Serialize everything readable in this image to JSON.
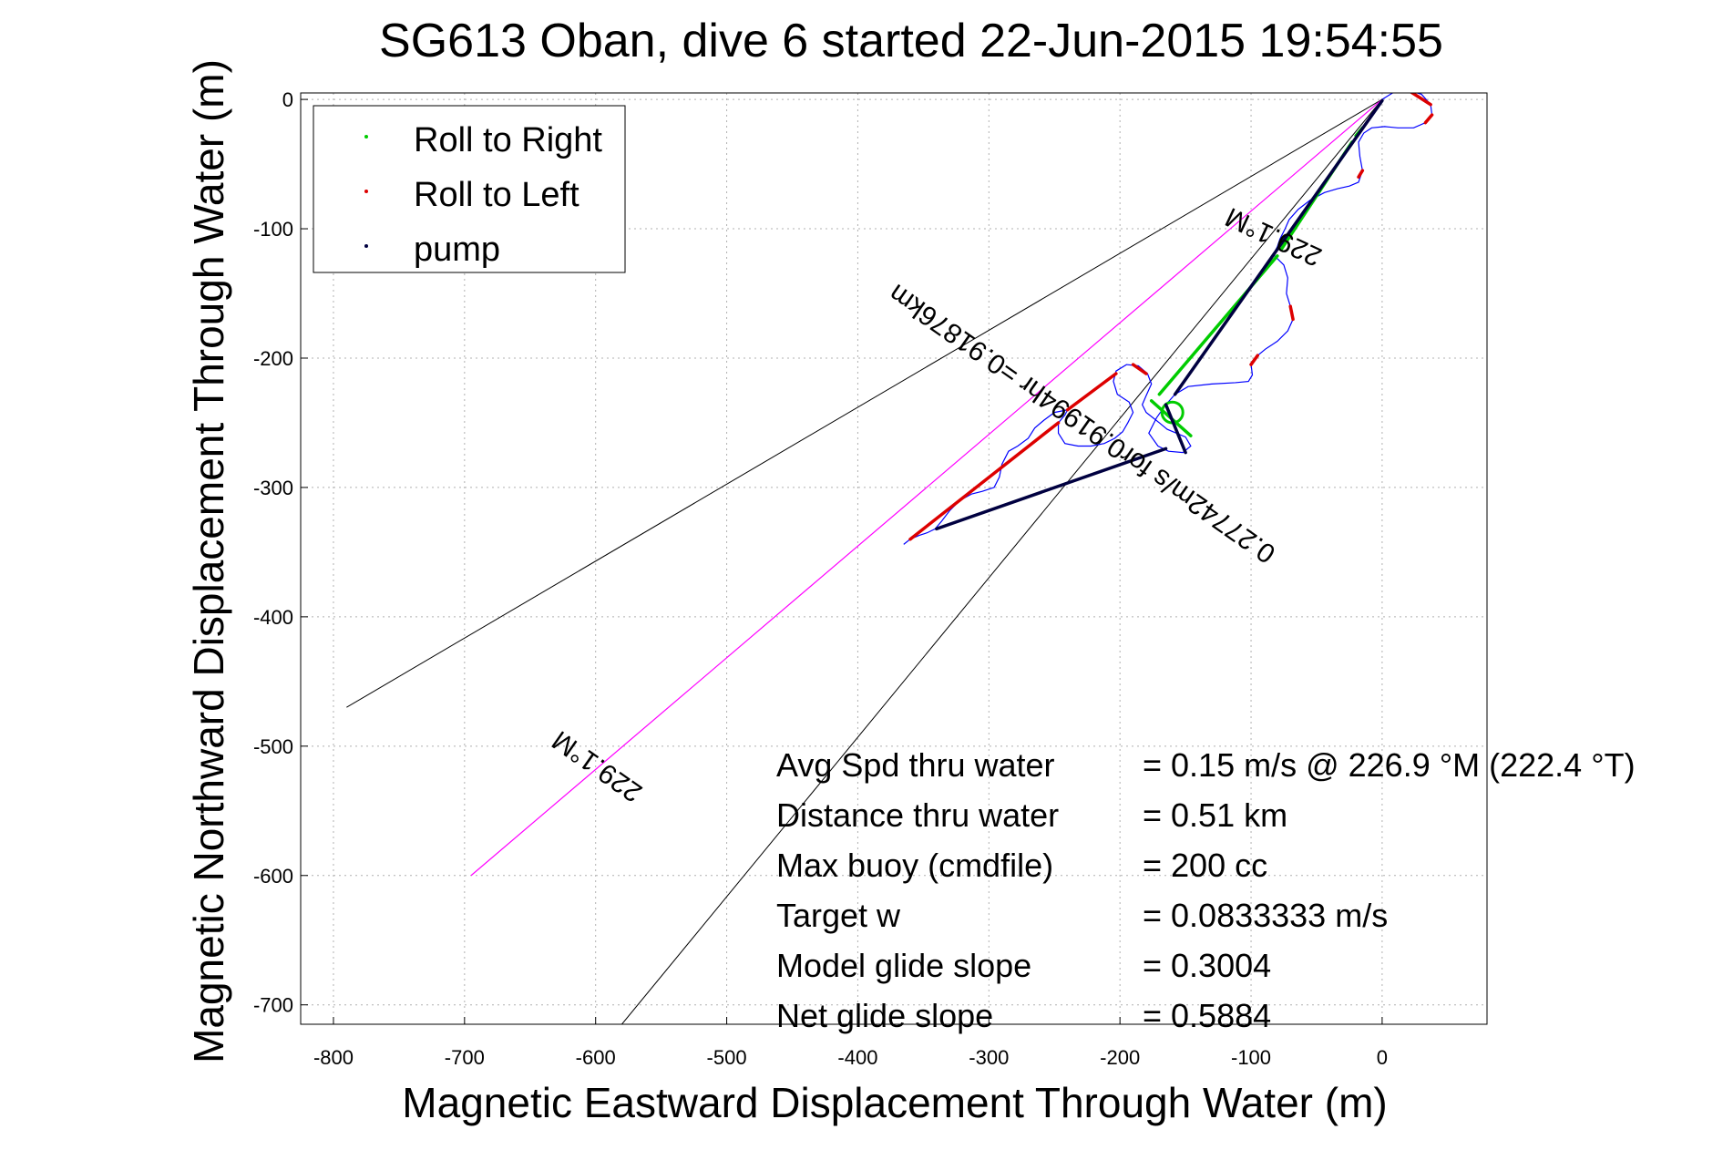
{
  "chart_data": {
    "type": "line",
    "title": "SG613 Oban, dive 6 started 22-Jun-2015 19:54:55",
    "xlabel": "Magnetic Eastward Displacement Through Water (m)",
    "ylabel": "Magnetic Northward Displacement Through Water (m)",
    "xlim": [
      -825,
      80
    ],
    "ylim": [
      -715,
      5
    ],
    "xticks": [
      -800,
      -700,
      -600,
      -500,
      -400,
      -300,
      -200,
      -100,
      0
    ],
    "yticks": [
      0,
      -100,
      -200,
      -300,
      -400,
      -500,
      -600,
      -700
    ],
    "grid": true,
    "legend": {
      "position": "top-left",
      "entries": [
        {
          "label": "Roll to Right",
          "color": "#00cc00"
        },
        {
          "label": "Roll to Left",
          "color": "#dd0000"
        },
        {
          "label": "pump",
          "color": "#000040"
        }
      ]
    },
    "track": {
      "color": "#0000ff",
      "points": [
        [
          0,
          0
        ],
        [
          8,
          5
        ],
        [
          20,
          7
        ],
        [
          30,
          4
        ],
        [
          37,
          -4
        ],
        [
          38,
          -12
        ],
        [
          33,
          -18
        ],
        [
          24,
          -22
        ],
        [
          12,
          -22
        ],
        [
          2,
          -21
        ],
        [
          -8,
          -22
        ],
        [
          -14,
          -26
        ],
        [
          -18,
          -33
        ],
        [
          -17,
          -44
        ],
        [
          -15,
          -55
        ],
        [
          -18,
          -64
        ],
        [
          -25,
          -67
        ],
        [
          -34,
          -69
        ],
        [
          -44,
          -72
        ],
        [
          -55,
          -78
        ],
        [
          -64,
          -85
        ],
        [
          -71,
          -93
        ],
        [
          -74,
          -100
        ],
        [
          -78,
          -108
        ],
        [
          -80,
          -114
        ],
        [
          -83,
          -120
        ],
        [
          -75,
          -128
        ],
        [
          -72,
          -138
        ],
        [
          -73,
          -150
        ],
        [
          -70,
          -160
        ],
        [
          -68,
          -170
        ],
        [
          -72,
          -179
        ],
        [
          -80,
          -187
        ],
        [
          -89,
          -193
        ],
        [
          -95,
          -198
        ],
        [
          -100,
          -205
        ],
        [
          -99,
          -213
        ],
        [
          -102,
          -218
        ],
        [
          -112,
          -219
        ],
        [
          -130,
          -220
        ],
        [
          -148,
          -222
        ],
        [
          -158,
          -228
        ],
        [
          -165,
          -236
        ],
        [
          -172,
          -246
        ],
        [
          -178,
          -258
        ],
        [
          -171,
          -268
        ],
        [
          -163,
          -272
        ],
        [
          -152,
          -273
        ],
        [
          -146,
          -268
        ],
        [
          -150,
          -261
        ],
        [
          -157,
          -258
        ],
        [
          -164,
          -255
        ],
        [
          -170,
          -250
        ],
        [
          -175,
          -246
        ],
        [
          -180,
          -242
        ],
        [
          -183,
          -236
        ],
        [
          -180,
          -229
        ],
        [
          -176,
          -220
        ],
        [
          -179,
          -212
        ],
        [
          -186,
          -206
        ],
        [
          -195,
          -205
        ],
        [
          -203,
          -210
        ],
        [
          -205,
          -218
        ],
        [
          -202,
          -228
        ],
        [
          -193,
          -234
        ],
        [
          -190,
          -242
        ],
        [
          -194,
          -250
        ],
        [
          -198,
          -257
        ],
        [
          -204,
          -262
        ],
        [
          -212,
          -266
        ],
        [
          -222,
          -268
        ],
        [
          -232,
          -268
        ],
        [
          -242,
          -266
        ],
        [
          -247,
          -258
        ],
        [
          -247,
          -250
        ],
        [
          -242,
          -244
        ],
        [
          -240,
          -240
        ],
        [
          -250,
          -242
        ],
        [
          -258,
          -248
        ],
        [
          -265,
          -254
        ],
        [
          -270,
          -262
        ],
        [
          -278,
          -268
        ],
        [
          -285,
          -272
        ],
        [
          -290,
          -282
        ],
        [
          -292,
          -292
        ],
        [
          -296,
          -300
        ],
        [
          -305,
          -303
        ],
        [
          -313,
          -305
        ],
        [
          -322,
          -310
        ],
        [
          -330,
          -318
        ],
        [
          -336,
          -326
        ],
        [
          -341,
          -332
        ],
        [
          -347,
          -335
        ],
        [
          -353,
          -337
        ],
        [
          -360,
          -340
        ],
        [
          -365,
          -344
        ]
      ],
      "loop": {
        "center": [
          -160,
          -242
        ],
        "radius": 8
      }
    },
    "roll_right_segments": [
      [
        -15,
        -22
      ],
      [
        -20,
        -28
      ],
      [
        -23,
        -33
      ],
      [
        -77,
        -116
      ],
      [
        -80,
        -121
      ],
      [
        -170,
        -228
      ],
      [
        -176,
        -233
      ],
      [
        -146,
        -260
      ],
      [
        -150,
        -264
      ]
    ],
    "roll_left_segments": [
      [
        20,
        7
      ],
      [
        37,
        -4
      ],
      [
        38,
        -12
      ],
      [
        33,
        -18
      ],
      [
        -18,
        -60
      ],
      [
        -15,
        -55
      ],
      [
        -70,
        -160
      ],
      [
        -68,
        -170
      ],
      [
        -95,
        -198
      ],
      [
        -100,
        -205
      ],
      [
        -180,
        -212
      ],
      [
        -190,
        -205
      ],
      [
        -203,
        -212
      ],
      [
        -240,
        -240
      ],
      [
        -247,
        -250
      ],
      [
        -360,
        -340
      ],
      [
        -365,
        -348
      ]
    ],
    "pump_segments": [
      [
        0,
        -1
      ],
      [
        -158,
        -228
      ],
      [
        -165,
        -236
      ],
      [
        -150,
        -273
      ],
      [
        -165,
        -270
      ],
      [
        -340,
        -332
      ],
      [
        -347,
        -335
      ]
    ],
    "heading_lines": {
      "color": "#000000",
      "rays": [
        [
          [
            0,
            0
          ],
          [
            -790,
            -470
          ]
        ],
        [
          [
            0,
            0
          ],
          [
            -580,
            -715
          ]
        ]
      ],
      "heading_ray": {
        "from": [
          0,
          0
        ],
        "to": [
          -695,
          -600
        ],
        "color": "#ff00ff"
      },
      "labels": [
        {
          "text": "229.1°M",
          "at": [
            -80,
            -100
          ],
          "angle": 205
        },
        {
          "text": "0.27742m/s for0.91994hr =0.91876km",
          "at": [
            -225,
            -245
          ],
          "angle": 215
        },
        {
          "text": "229.1°M",
          "at": [
            -595,
            -510
          ],
          "angle": 215
        }
      ]
    },
    "annotations": [
      {
        "label": "Avg Spd thru water",
        "value": "=  0.15 m/s @ 226.9 °M (222.4 °T)"
      },
      {
        "label": "Distance thru water",
        "value": "=  0.51 km"
      },
      {
        "label": "Max buoy (cmdfile)",
        "value": "= 200 cc"
      },
      {
        "label": "Target w",
        "value": "= 0.0833333 m/s"
      },
      {
        "label": "Model glide slope",
        "value": "= 0.3004"
      },
      {
        "label": "Net glide slope",
        "value": "= 0.5884"
      }
    ]
  }
}
